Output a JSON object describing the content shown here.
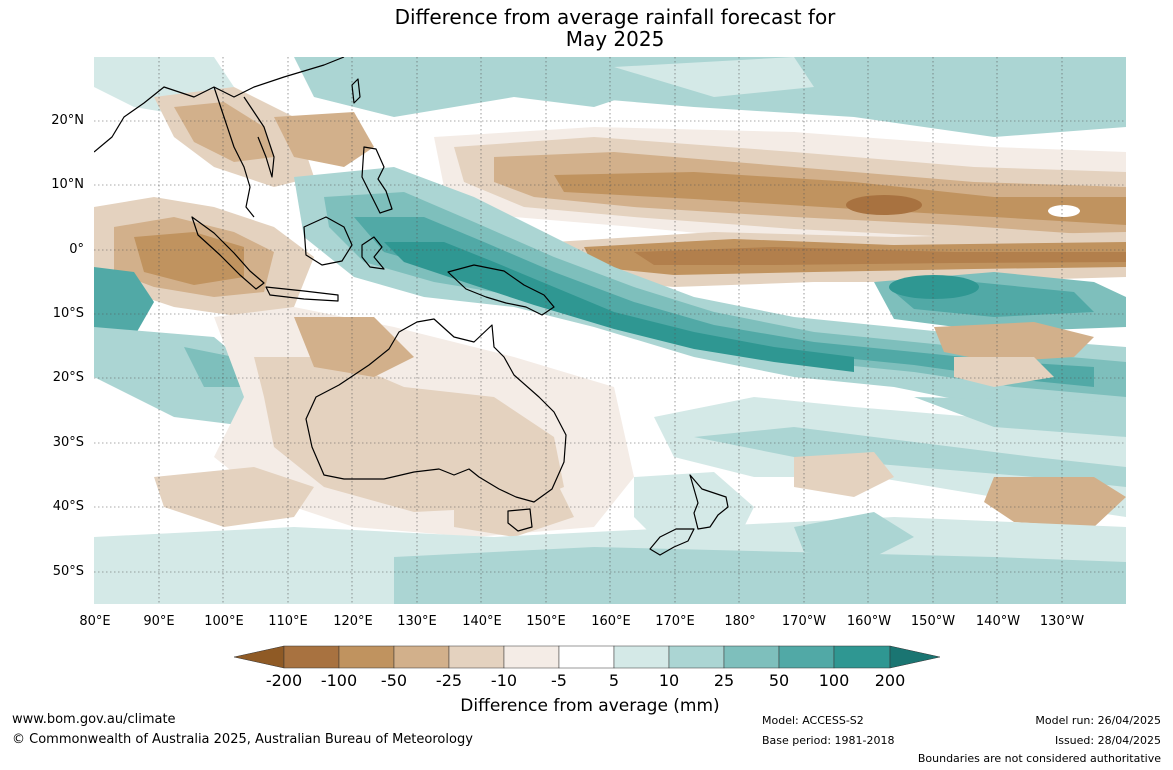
{
  "title": {
    "line1": "Difference from average rainfall forecast for",
    "line2": "May 2025"
  },
  "map": {
    "lat_labels": [
      "20°N",
      "10°N",
      "0°",
      "10°S",
      "20°S",
      "30°S",
      "40°S",
      "50°S"
    ],
    "lon_labels": [
      "80°E",
      "90°E",
      "100°E",
      "110°E",
      "120°E",
      "130°E",
      "140°E",
      "150°E",
      "160°E",
      "170°E",
      "180°",
      "170°W",
      "160°W",
      "150°W",
      "140°W",
      "130°W"
    ]
  },
  "legend": {
    "title": "Difference from average (mm)",
    "ticks": [
      "-200",
      "-100",
      "-50",
      "-25",
      "-10",
      "-5",
      "5",
      "10",
      "25",
      "50",
      "100",
      "200"
    ],
    "colors": {
      "dry_extend": "#8f5a25",
      "dry_200": "#a87240",
      "dry_100": "#c0935f",
      "dry_50": "#d2b08b",
      "dry_25": "#e4d2bf",
      "dry_10": "#f4ece6",
      "neutral": "#ffffff",
      "wet_10": "#d4e9e7",
      "wet_25": "#abd5d3",
      "wet_50": "#7ebfbc",
      "wet_100": "#51a9a6",
      "wet_200": "#2f9792",
      "wet_extend": "#1a7572"
    }
  },
  "footer": {
    "website": "www.bom.gov.au/climate",
    "copyright": "© Commonwealth of Australia 2025, Australian Bureau of Meteorology",
    "model": "Model: ACCESS-S2",
    "base_period": "Base period: 1981-2018",
    "model_run": "Model run: 26/04/2025",
    "issued": "Issued: 28/04/2025",
    "boundaries": "Boundaries are not considered authoritative"
  }
}
